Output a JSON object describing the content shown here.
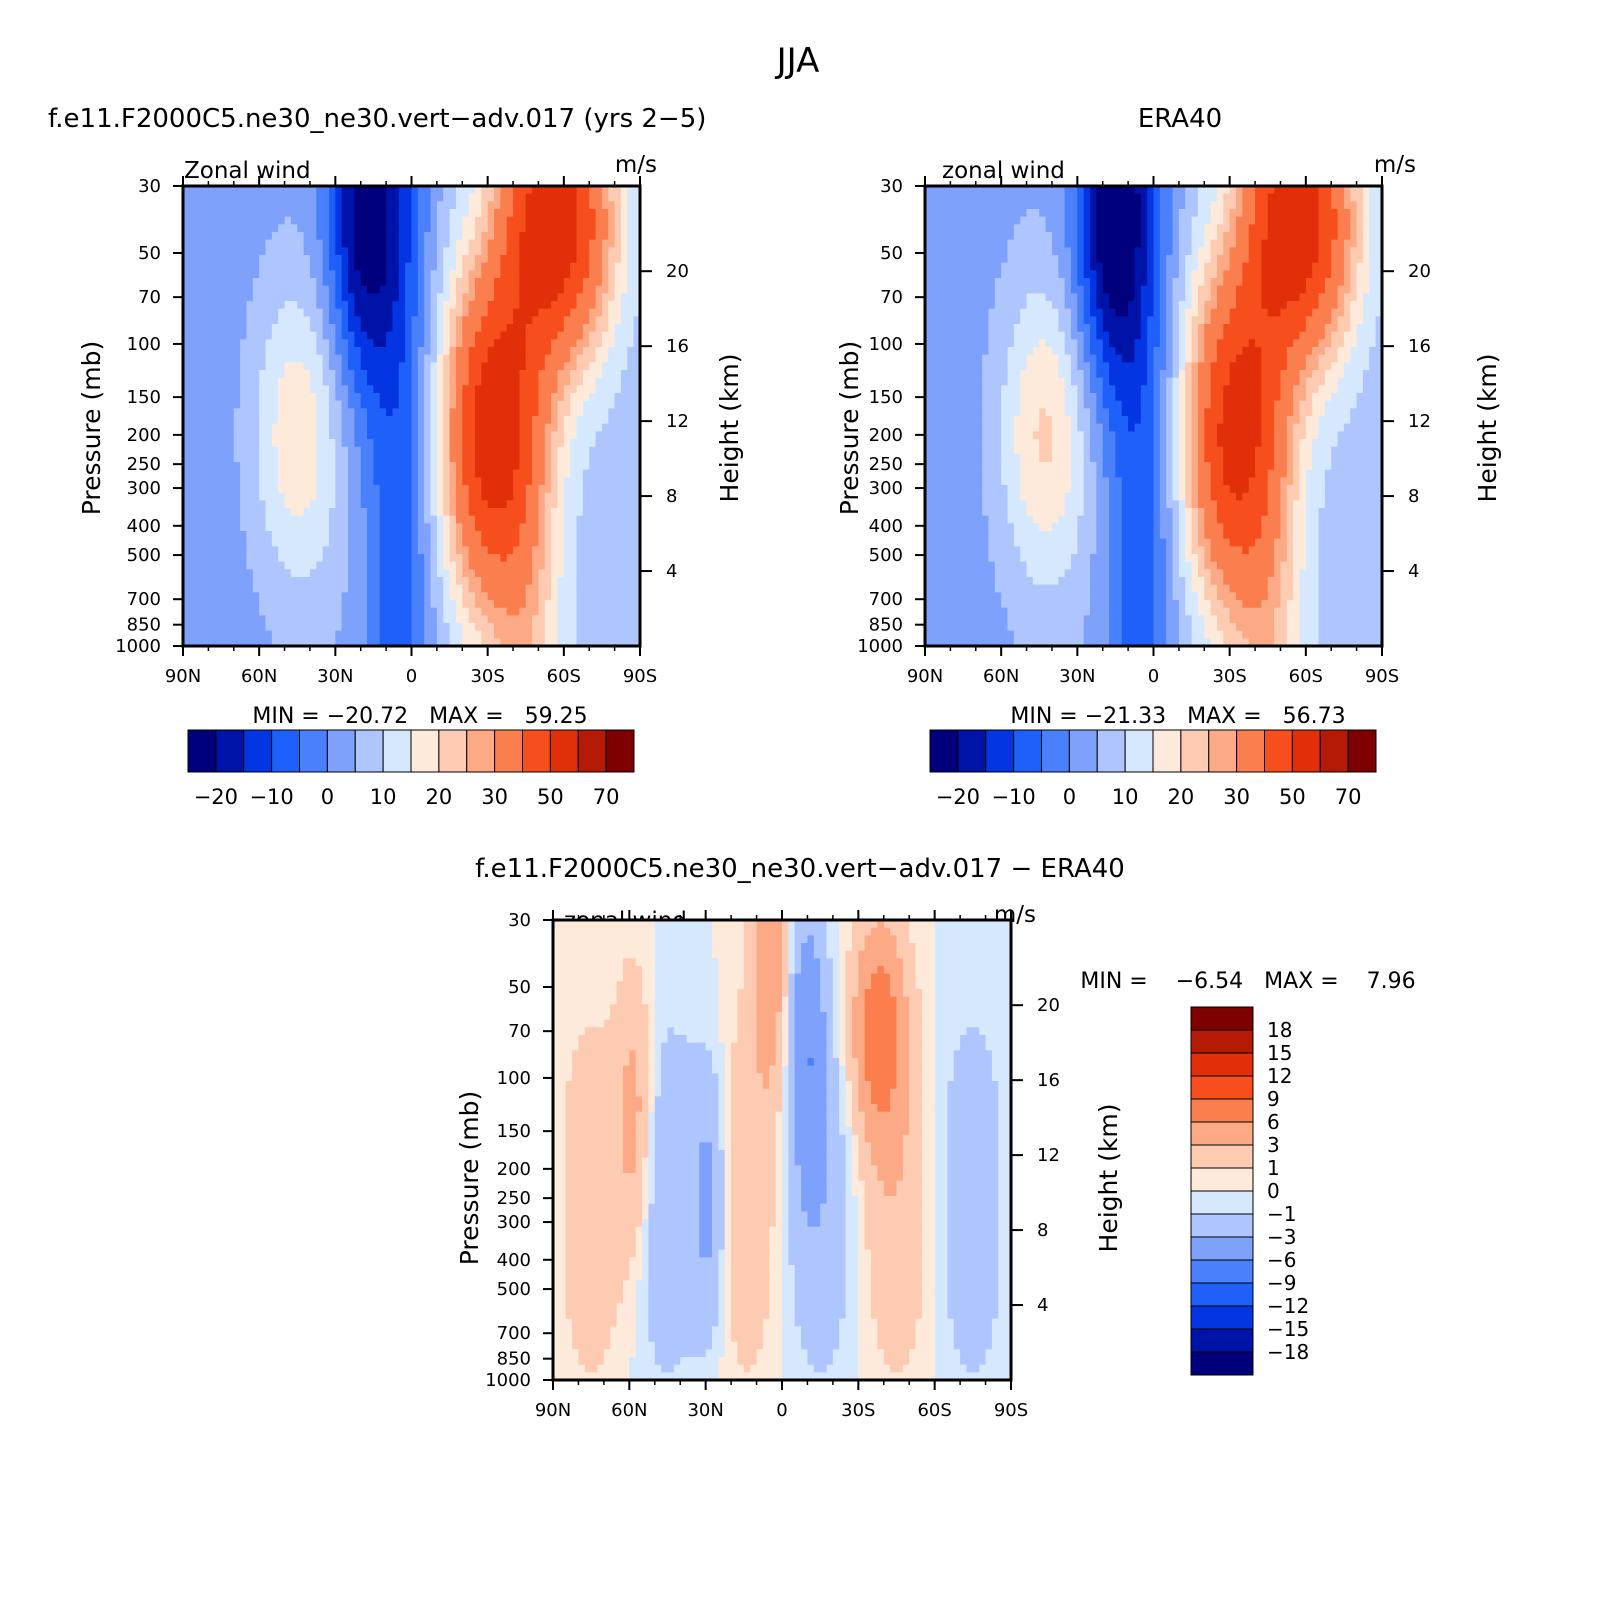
{
  "figure": {
    "title": "JJA",
    "panels": [
      {
        "title": "f.e11.F2000C5.ne30_ne30.vert−adv.017 (yrs 2−5)",
        "corner_left": "Zonal wind",
        "corner_right": "m/s",
        "ylabel": "Pressure (mb)",
        "ylabel_right": "Height (km)",
        "minmax": "MIN = −20.72   MAX =   59.25"
      },
      {
        "title": "ERA40",
        "corner_left": "zonal wind",
        "corner_right": "m/s",
        "ylabel": "Pressure (mb)",
        "ylabel_right": "Height (km)",
        "minmax": "MIN = −21.33   MAX =   56.73"
      },
      {
        "title": "f.e11.F2000C5.ne30_ne30.vert−adv.017 − ERA40",
        "corner_left": "zonal wind",
        "corner_right": "m/s",
        "ylabel": "Pressure (mb)",
        "ylabel_right": "Height (km)",
        "minmax": "MIN =    −6.54   MAX =    7.96"
      }
    ]
  },
  "chart_data": [
    {
      "type": "heatmap",
      "title": "f.e11.F2000C5.ne30_ne30.vert−adv.017 (yrs 2−5)",
      "subtitle": "Zonal wind",
      "units": "m/s",
      "ylabel": "Pressure (mb)",
      "ylabel_right": "Height (km)",
      "x_ticks": [
        "90N",
        "60N",
        "30N",
        "0",
        "30S",
        "60S",
        "90S"
      ],
      "y_ticks": [
        30,
        50,
        70,
        100,
        150,
        200,
        250,
        300,
        400,
        500,
        700,
        850,
        1000
      ],
      "y_log": true,
      "ylim": [
        1000,
        30
      ],
      "height_ticks": [
        4,
        8,
        12,
        16,
        20
      ],
      "min": -20.72,
      "max": 59.25,
      "colorbar_labels": [
        "−20",
        "−10",
        "0",
        "10",
        "20",
        "30",
        "50",
        "70"
      ],
      "levels": [
        -25,
        -20,
        -15,
        -10,
        -5,
        0,
        5,
        10,
        15,
        20,
        25,
        30,
        40,
        50,
        60,
        70,
        80
      ],
      "features": [
        {
          "lat": 45,
          "p": 200,
          "value": 15
        },
        {
          "lat": -30,
          "p": 200,
          "value": 55
        },
        {
          "lat": -60,
          "p": 40,
          "value": 55
        },
        {
          "lat": 20,
          "p": 40,
          "value": -20
        }
      ]
    },
    {
      "type": "heatmap",
      "title": "ERA40",
      "subtitle": "zonal wind",
      "units": "m/s",
      "ylabel": "Pressure (mb)",
      "ylabel_right": "Height (km)",
      "x_ticks": [
        "90N",
        "60N",
        "30N",
        "0",
        "30S",
        "60S",
        "90S"
      ],
      "y_ticks": [
        30,
        50,
        70,
        100,
        150,
        200,
        250,
        300,
        400,
        500,
        700,
        850,
        1000
      ],
      "y_log": true,
      "ylim": [
        1000,
        30
      ],
      "height_ticks": [
        4,
        8,
        12,
        16,
        20
      ],
      "min": -21.33,
      "max": 56.73,
      "colorbar_labels": [
        "−20",
        "−10",
        "0",
        "10",
        "20",
        "30",
        "50",
        "70"
      ],
      "levels": [
        -25,
        -20,
        -15,
        -10,
        -5,
        0,
        5,
        10,
        15,
        20,
        25,
        30,
        40,
        50,
        60,
        70,
        80
      ],
      "features": [
        {
          "lat": 43,
          "p": 200,
          "value": 17
        },
        {
          "lat": -30,
          "p": 200,
          "value": 52
        },
        {
          "lat": -60,
          "p": 40,
          "value": 55
        },
        {
          "lat": 18,
          "p": 40,
          "value": -21
        }
      ]
    },
    {
      "type": "heatmap",
      "title": "f.e11.F2000C5.ne30_ne30.vert−adv.017 − ERA40",
      "subtitle": "zonal wind",
      "units": "m/s",
      "ylabel": "Pressure (mb)",
      "ylabel_right": "Height (km)",
      "x_ticks": [
        "90N",
        "60N",
        "30N",
        "0",
        "30S",
        "60S",
        "90S"
      ],
      "y_ticks": [
        30,
        50,
        70,
        100,
        150,
        200,
        250,
        300,
        400,
        500,
        700,
        850,
        1000
      ],
      "y_log": true,
      "ylim": [
        1000,
        30
      ],
      "height_ticks": [
        4,
        8,
        12,
        16,
        20
      ],
      "min": -6.54,
      "max": 7.96,
      "colorbar_labels": [
        "18",
        "15",
        "12",
        "9",
        "6",
        "3",
        "1",
        "0",
        "−1",
        "−3",
        "−6",
        "−9",
        "−12",
        "−15",
        "−18"
      ],
      "levels": [
        -21,
        -18,
        -15,
        -12,
        -9,
        -6,
        -3,
        -1,
        0,
        1,
        3,
        6,
        9,
        12,
        15,
        18,
        21
      ],
      "features": [
        {
          "lat": 58,
          "p": 130,
          "value": 4
        },
        {
          "lat": -38,
          "p": 70,
          "value": 8
        },
        {
          "lat": 5,
          "p": 40,
          "value": 5
        },
        {
          "lat": -10,
          "p": 75,
          "value": -5
        },
        {
          "lat": 28,
          "p": 250,
          "value": -4
        }
      ]
    }
  ]
}
